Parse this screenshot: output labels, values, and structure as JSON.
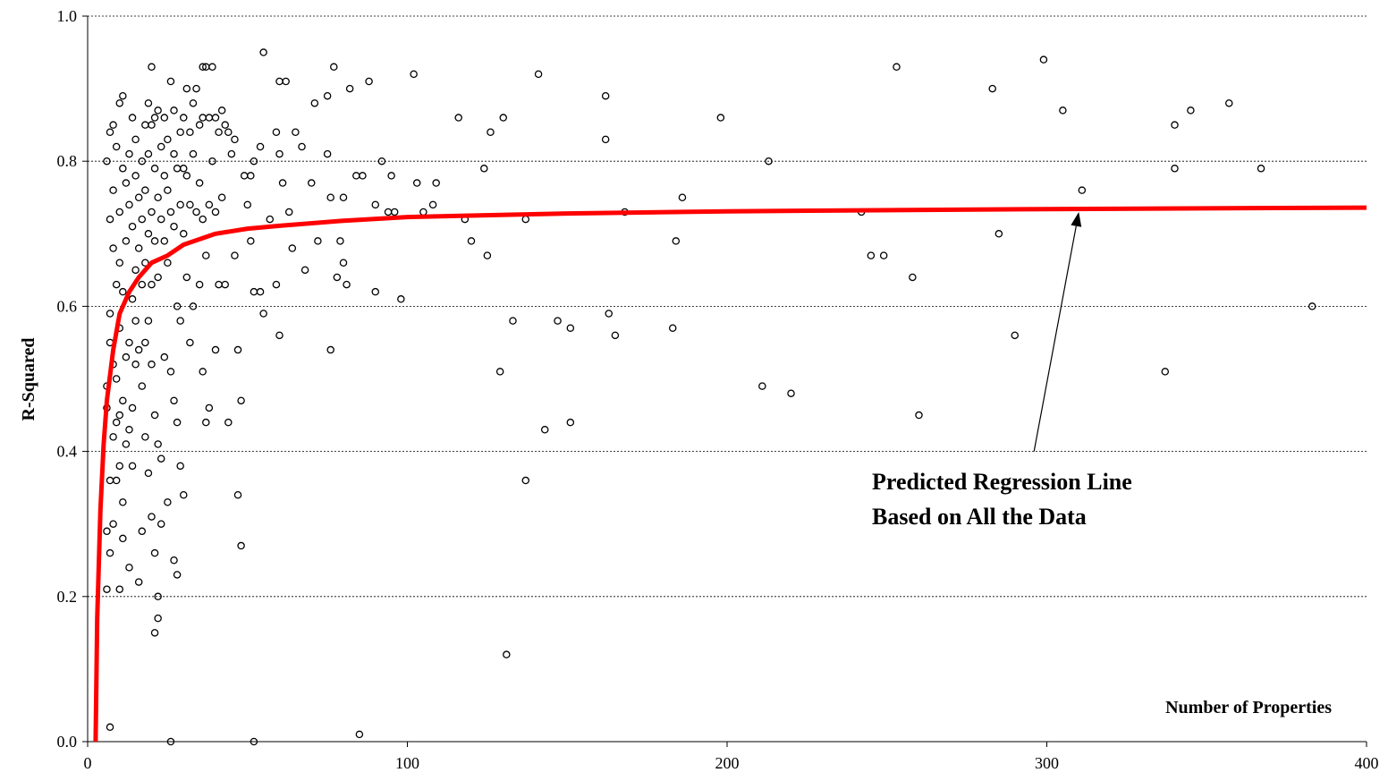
{
  "chart_data": {
    "type": "scatter",
    "xlabel": "Number of Properties",
    "ylabel": "R-Squared",
    "xlim": [
      0,
      400
    ],
    "ylim": [
      0,
      1.0
    ],
    "x_ticks": [
      0,
      100,
      200,
      300,
      400
    ],
    "x_tick_labels": [
      "0",
      "100",
      "200",
      "300",
      "400"
    ],
    "y_ticks": [
      0,
      0.2,
      0.4,
      0.6,
      0.8,
      1.0
    ],
    "y_tick_labels": [
      "0.0",
      "0.2",
      "0.4",
      "0.6",
      "0.8",
      "1.0"
    ],
    "grid": "horizontal dashed",
    "annotation": {
      "lines": [
        "Predicted Regression Line",
        "Based on All the Data"
      ],
      "arrow_from": [
        296,
        0.4
      ],
      "arrow_to": [
        310,
        0.73
      ]
    },
    "series": [
      {
        "style": "open-circle markers",
        "points": [
          [
            6,
            0.8
          ],
          [
            6,
            0.49
          ],
          [
            6,
            0.46
          ],
          [
            6,
            0.29
          ],
          [
            6,
            0.21
          ],
          [
            7,
            0.72
          ],
          [
            7,
            0.36
          ],
          [
            7,
            0.26
          ],
          [
            7,
            0.02
          ],
          [
            7,
            0.84
          ],
          [
            7,
            0.59
          ],
          [
            7,
            0.55
          ],
          [
            8,
            0.85
          ],
          [
            8,
            0.76
          ],
          [
            8,
            0.68
          ],
          [
            8,
            0.52
          ],
          [
            8,
            0.42
          ],
          [
            8,
            0.3
          ],
          [
            9,
            0.82
          ],
          [
            9,
            0.63
          ],
          [
            9,
            0.5
          ],
          [
            9,
            0.44
          ],
          [
            9,
            0.36
          ],
          [
            10,
            0.88
          ],
          [
            10,
            0.73
          ],
          [
            10,
            0.66
          ],
          [
            10,
            0.57
          ],
          [
            10,
            0.45
          ],
          [
            10,
            0.38
          ],
          [
            10,
            0.21
          ],
          [
            11,
            0.89
          ],
          [
            11,
            0.79
          ],
          [
            11,
            0.62
          ],
          [
            11,
            0.47
          ],
          [
            11,
            0.33
          ],
          [
            11,
            0.28
          ],
          [
            12,
            0.77
          ],
          [
            12,
            0.69
          ],
          [
            12,
            0.53
          ],
          [
            12,
            0.41
          ],
          [
            13,
            0.81
          ],
          [
            13,
            0.74
          ],
          [
            13,
            0.55
          ],
          [
            13,
            0.43
          ],
          [
            13,
            0.24
          ],
          [
            14,
            0.86
          ],
          [
            14,
            0.71
          ],
          [
            14,
            0.61
          ],
          [
            14,
            0.46
          ],
          [
            14,
            0.38
          ],
          [
            15,
            0.83
          ],
          [
            15,
            0.78
          ],
          [
            15,
            0.65
          ],
          [
            15,
            0.58
          ],
          [
            15,
            0.52
          ],
          [
            16,
            0.75
          ],
          [
            16,
            0.68
          ],
          [
            16,
            0.54
          ],
          [
            16,
            0.22
          ],
          [
            17,
            0.8
          ],
          [
            17,
            0.72
          ],
          [
            17,
            0.63
          ],
          [
            17,
            0.49
          ],
          [
            17,
            0.29
          ],
          [
            18,
            0.85
          ],
          [
            18,
            0.76
          ],
          [
            18,
            0.66
          ],
          [
            18,
            0.55
          ],
          [
            18,
            0.42
          ],
          [
            19,
            0.88
          ],
          [
            19,
            0.81
          ],
          [
            19,
            0.7
          ],
          [
            19,
            0.58
          ],
          [
            19,
            0.37
          ],
          [
            20,
            0.93
          ],
          [
            20,
            0.85
          ],
          [
            20,
            0.73
          ],
          [
            20,
            0.63
          ],
          [
            20,
            0.52
          ],
          [
            20,
            0.31
          ],
          [
            21,
            0.86
          ],
          [
            21,
            0.79
          ],
          [
            21,
            0.69
          ],
          [
            21,
            0.45
          ],
          [
            21,
            0.26
          ],
          [
            21,
            0.15
          ],
          [
            22,
            0.87
          ],
          [
            22,
            0.75
          ],
          [
            22,
            0.64
          ],
          [
            22,
            0.41
          ],
          [
            22,
            0.2
          ],
          [
            22,
            0.17
          ],
          [
            23,
            0.82
          ],
          [
            23,
            0.72
          ],
          [
            23,
            0.39
          ],
          [
            23,
            0.3
          ],
          [
            24,
            0.86
          ],
          [
            24,
            0.78
          ],
          [
            24,
            0.69
          ],
          [
            24,
            0.53
          ],
          [
            25,
            0.83
          ],
          [
            25,
            0.76
          ],
          [
            25,
            0.66
          ],
          [
            25,
            0.33
          ],
          [
            26,
            0.91
          ],
          [
            26,
            0.73
          ],
          [
            26,
            0.51
          ],
          [
            26,
            0.0
          ],
          [
            27,
            0.87
          ],
          [
            27,
            0.81
          ],
          [
            27,
            0.71
          ],
          [
            27,
            0.47
          ],
          [
            27,
            0.25
          ],
          [
            28,
            0.79
          ],
          [
            28,
            0.6
          ],
          [
            28,
            0.44
          ],
          [
            28,
            0.23
          ],
          [
            29,
            0.84
          ],
          [
            29,
            0.74
          ],
          [
            29,
            0.58
          ],
          [
            29,
            0.38
          ],
          [
            30,
            0.86
          ],
          [
            30,
            0.79
          ],
          [
            30,
            0.7
          ],
          [
            30,
            0.34
          ],
          [
            31,
            0.9
          ],
          [
            31,
            0.78
          ],
          [
            31,
            0.64
          ],
          [
            32,
            0.84
          ],
          [
            32,
            0.74
          ],
          [
            32,
            0.55
          ],
          [
            33,
            0.88
          ],
          [
            33,
            0.81
          ],
          [
            33,
            0.6
          ],
          [
            34,
            0.9
          ],
          [
            34,
            0.73
          ],
          [
            35,
            0.85
          ],
          [
            35,
            0.77
          ],
          [
            35,
            0.63
          ],
          [
            36,
            0.93
          ],
          [
            36,
            0.86
          ],
          [
            36,
            0.72
          ],
          [
            36,
            0.51
          ],
          [
            37,
            0.93
          ],
          [
            37,
            0.67
          ],
          [
            37,
            0.44
          ],
          [
            38,
            0.86
          ],
          [
            38,
            0.74
          ],
          [
            38,
            0.46
          ],
          [
            39,
            0.93
          ],
          [
            39,
            0.8
          ],
          [
            40,
            0.86
          ],
          [
            40,
            0.73
          ],
          [
            40,
            0.54
          ],
          [
            41,
            0.84
          ],
          [
            41,
            0.63
          ],
          [
            42,
            0.87
          ],
          [
            42,
            0.75
          ],
          [
            43,
            0.85
          ],
          [
            43,
            0.63
          ],
          [
            44,
            0.84
          ],
          [
            44,
            0.44
          ],
          [
            45,
            0.81
          ],
          [
            46,
            0.83
          ],
          [
            46,
            0.67
          ],
          [
            47,
            0.54
          ],
          [
            47,
            0.34
          ],
          [
            48,
            0.47
          ],
          [
            48,
            0.27
          ],
          [
            49,
            0.78
          ],
          [
            50,
            0.74
          ],
          [
            51,
            0.78
          ],
          [
            51,
            0.69
          ],
          [
            52,
            0.8
          ],
          [
            52,
            0.62
          ],
          [
            52,
            0.0
          ],
          [
            54,
            0.82
          ],
          [
            54,
            0.62
          ],
          [
            55,
            0.95
          ],
          [
            55,
            0.59
          ],
          [
            57,
            0.72
          ],
          [
            59,
            0.84
          ],
          [
            59,
            0.63
          ],
          [
            60,
            0.91
          ],
          [
            60,
            0.81
          ],
          [
            60,
            0.56
          ],
          [
            61,
            0.77
          ],
          [
            62,
            0.91
          ],
          [
            63,
            0.73
          ],
          [
            64,
            0.68
          ],
          [
            65,
            0.84
          ],
          [
            67,
            0.82
          ],
          [
            68,
            0.65
          ],
          [
            70,
            0.77
          ],
          [
            71,
            0.88
          ],
          [
            72,
            0.69
          ],
          [
            75,
            0.89
          ],
          [
            75,
            0.81
          ],
          [
            76,
            0.75
          ],
          [
            76,
            0.54
          ],
          [
            77,
            0.93
          ],
          [
            78,
            0.64
          ],
          [
            79,
            0.69
          ],
          [
            80,
            0.75
          ],
          [
            80,
            0.66
          ],
          [
            81,
            0.63
          ],
          [
            82,
            0.9
          ],
          [
            84,
            0.78
          ],
          [
            85,
            0.01
          ],
          [
            86,
            0.78
          ],
          [
            88,
            0.91
          ],
          [
            90,
            0.74
          ],
          [
            90,
            0.62
          ],
          [
            92,
            0.8
          ],
          [
            94,
            0.73
          ],
          [
            95,
            0.78
          ],
          [
            96,
            0.73
          ],
          [
            98,
            0.61
          ],
          [
            102,
            0.92
          ],
          [
            103,
            0.77
          ],
          [
            105,
            0.73
          ],
          [
            108,
            0.74
          ],
          [
            109,
            0.77
          ],
          [
            116,
            0.86
          ],
          [
            118,
            0.72
          ],
          [
            120,
            0.69
          ],
          [
            124,
            0.79
          ],
          [
            125,
            0.67
          ],
          [
            126,
            0.84
          ],
          [
            129,
            0.51
          ],
          [
            130,
            0.86
          ],
          [
            131,
            0.12
          ],
          [
            133,
            0.58
          ],
          [
            137,
            0.72
          ],
          [
            137,
            0.36
          ],
          [
            141,
            0.92
          ],
          [
            143,
            0.43
          ],
          [
            147,
            0.58
          ],
          [
            151,
            0.57
          ],
          [
            151,
            0.44
          ],
          [
            162,
            0.89
          ],
          [
            162,
            0.83
          ],
          [
            163,
            0.59
          ],
          [
            165,
            0.56
          ],
          [
            168,
            0.73
          ],
          [
            183,
            0.57
          ],
          [
            184,
            0.69
          ],
          [
            186,
            0.75
          ],
          [
            198,
            0.86
          ],
          [
            211,
            0.49
          ],
          [
            213,
            0.8
          ],
          [
            220,
            0.48
          ],
          [
            242,
            0.73
          ],
          [
            245,
            0.67
          ],
          [
            249,
            0.67
          ],
          [
            253,
            0.93
          ],
          [
            258,
            0.64
          ],
          [
            260,
            0.45
          ],
          [
            283,
            0.9
          ],
          [
            285,
            0.7
          ],
          [
            290,
            0.56
          ],
          [
            299,
            0.94
          ],
          [
            305,
            0.87
          ],
          [
            311,
            0.76
          ],
          [
            337,
            0.51
          ],
          [
            340,
            0.79
          ],
          [
            340,
            0.85
          ],
          [
            345,
            0.87
          ],
          [
            357,
            0.88
          ],
          [
            367,
            0.79
          ],
          [
            383,
            0.6
          ]
        ]
      },
      {
        "style": "line",
        "color": "#ff0000",
        "points": [
          [
            2.5,
            0.0
          ],
          [
            3,
            0.17
          ],
          [
            4,
            0.32
          ],
          [
            5,
            0.41
          ],
          [
            6,
            0.47
          ],
          [
            8,
            0.54
          ],
          [
            10,
            0.59
          ],
          [
            13,
            0.62
          ],
          [
            16,
            0.64
          ],
          [
            20,
            0.66
          ],
          [
            25,
            0.67
          ],
          [
            30,
            0.685
          ],
          [
            40,
            0.7
          ],
          [
            50,
            0.707
          ],
          [
            60,
            0.711
          ],
          [
            80,
            0.718
          ],
          [
            100,
            0.723
          ],
          [
            150,
            0.728
          ],
          [
            200,
            0.731
          ],
          [
            300,
            0.734
          ],
          [
            400,
            0.736
          ]
        ]
      }
    ]
  }
}
